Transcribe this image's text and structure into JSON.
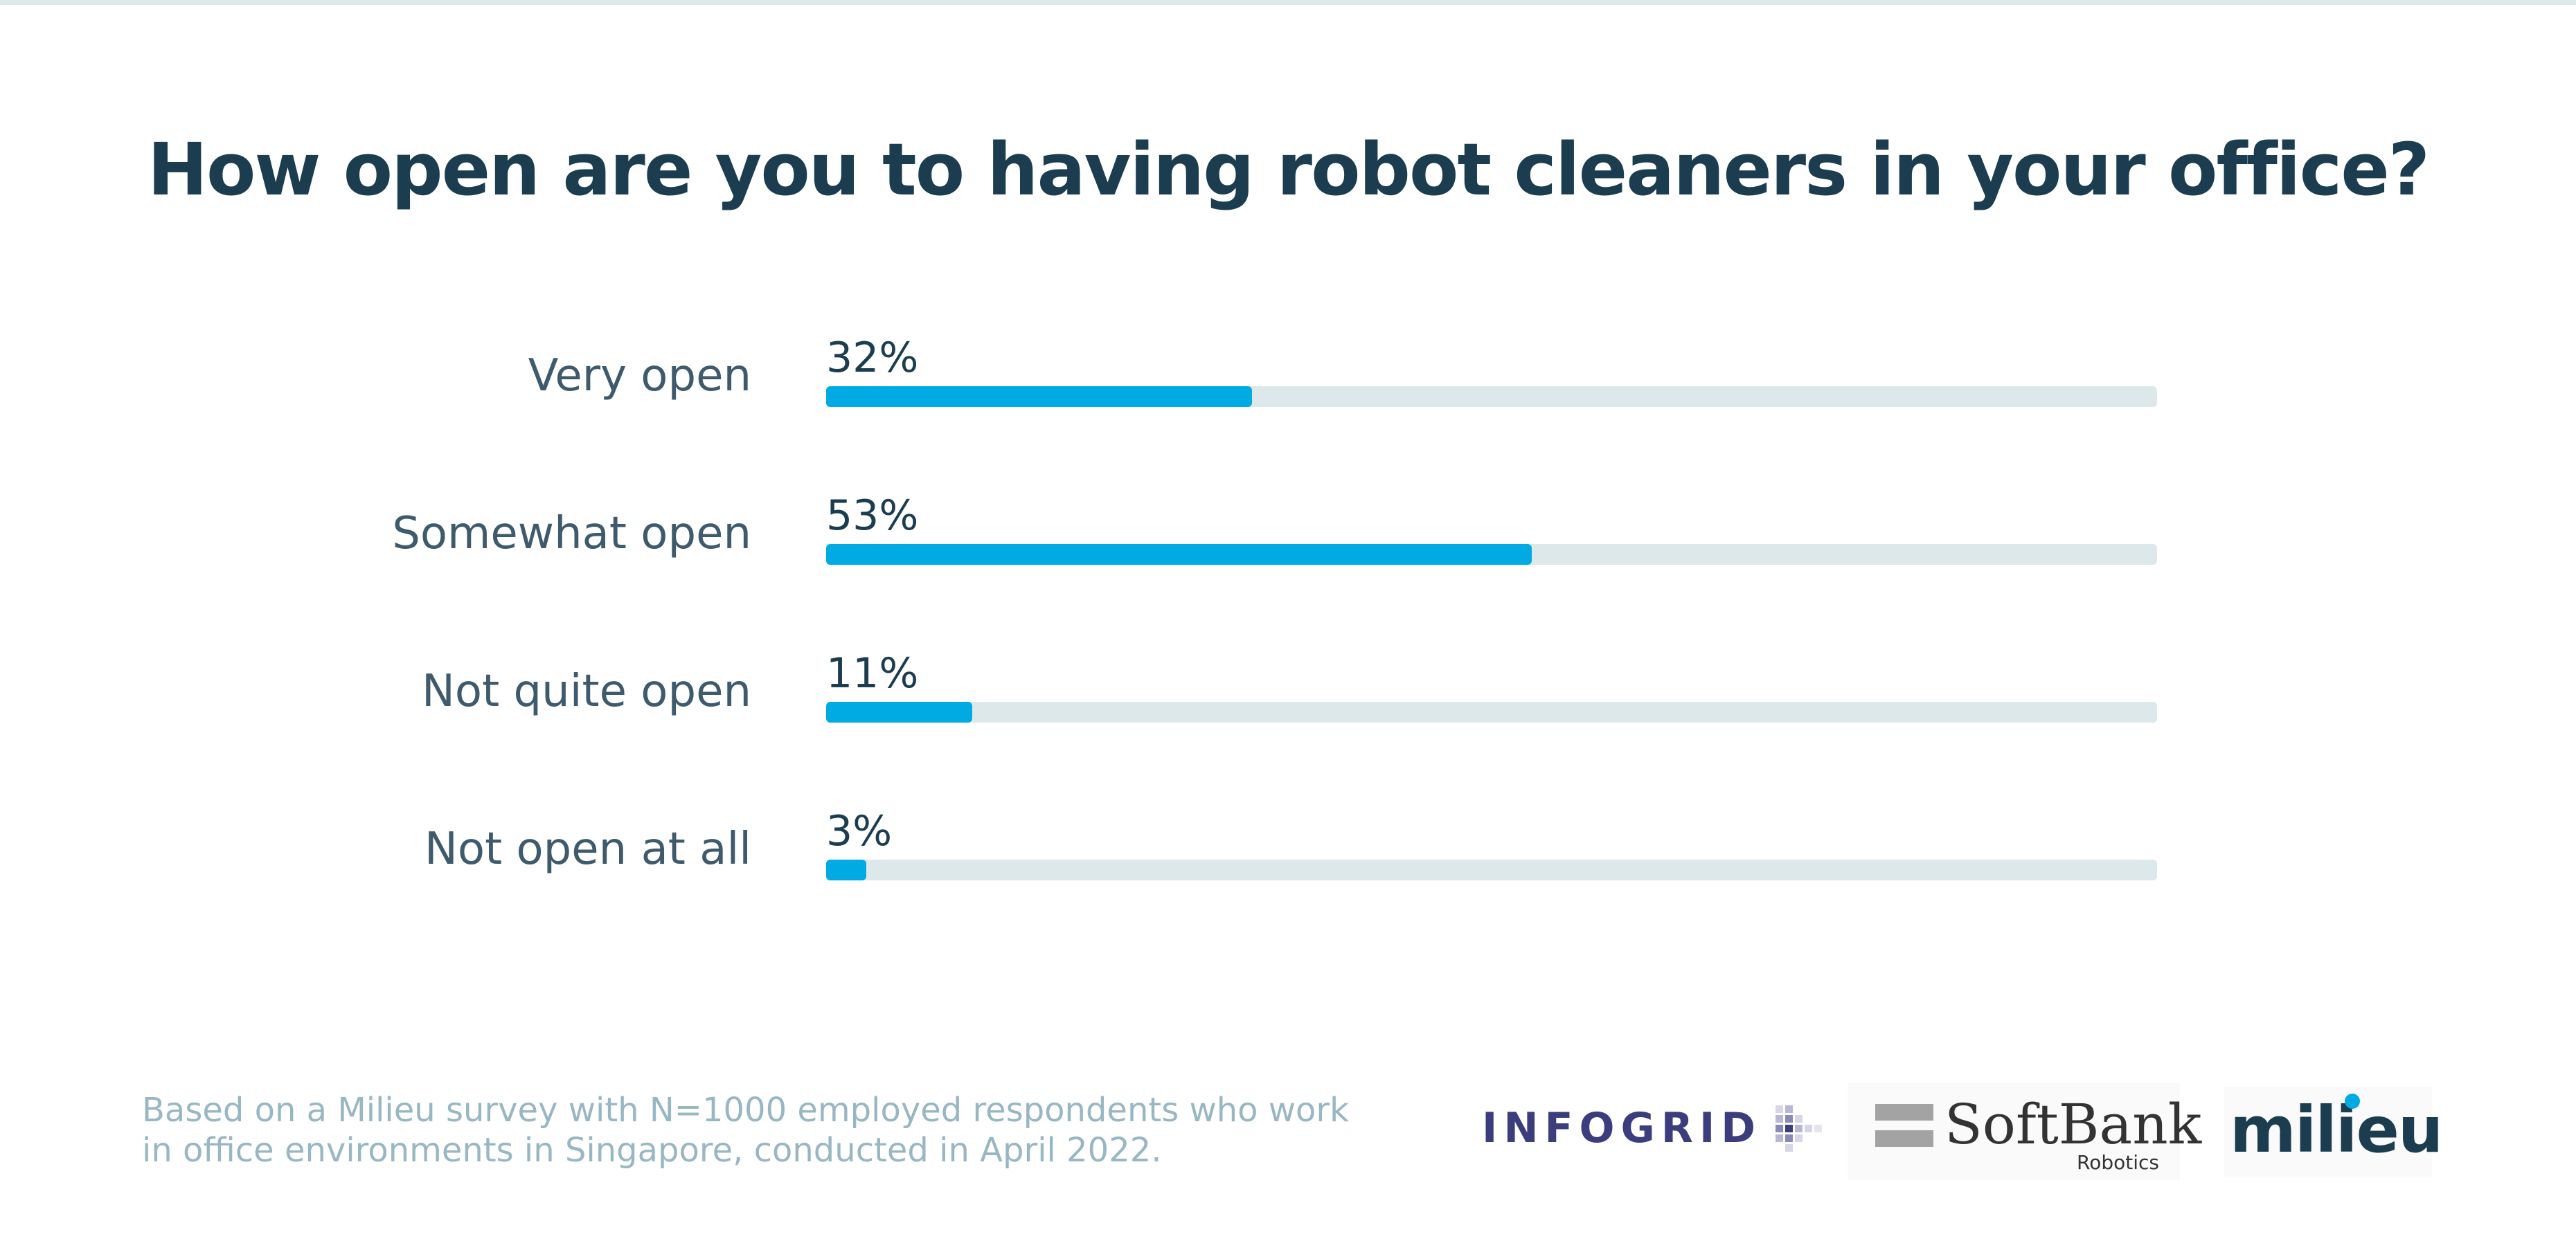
{
  "title": "How open are you to having robot cleaners in your office?",
  "chart_data": {
    "type": "bar",
    "orientation": "horizontal",
    "categories": [
      "Very open",
      "Somewhat open",
      "Not quite open",
      "Not open at all"
    ],
    "values": [
      32,
      53,
      11,
      3
    ],
    "value_labels": [
      "32%",
      "53%",
      "11%",
      "3%"
    ],
    "xlim": [
      0,
      100
    ],
    "unit": "%",
    "grid": false,
    "legend": "none",
    "title": "How open are you to having robot cleaners in your office?",
    "xlabel": "",
    "ylabel": ""
  },
  "colors": {
    "bar_fill": "#00abe3",
    "bar_track": "#dde8ea",
    "title": "#1b3d4f",
    "category_label": "#3e5a6c",
    "footnote": "#98b7c3"
  },
  "footnote": {
    "line1": "Based on a Milieu survey with N=1000 employed respondents who work",
    "line2": "in office environments in Singapore, conducted in April 2022."
  },
  "logos": {
    "infogrid": "INFOGRID",
    "softbank": "SoftBank",
    "softbank_sub": "Robotics",
    "milieu": "milieu"
  }
}
